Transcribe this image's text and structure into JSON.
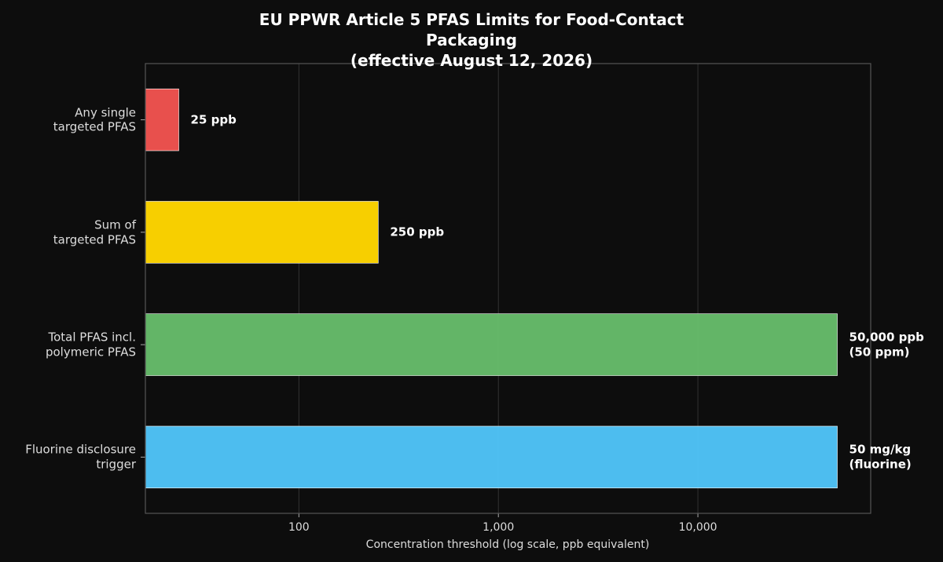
{
  "chart_data": {
    "type": "hbar",
    "title": "EU PPWR Article 5 PFAS Limits for Food-Contact Packaging\n(effective August 12, 2026)",
    "xlabel": "Concentration threshold (log scale, ppb equivalent)",
    "categories": [
      "Any single\ntargeted PFAS",
      "Sum of\ntargeted PFAS",
      "Total PFAS incl.\npolymeric PFAS",
      "Fluorine disclosure\ntrigger"
    ],
    "values": [
      25,
      250,
      50000,
      50000
    ],
    "value_labels": [
      "25 ppb",
      "250 ppb",
      "50,000 ppb\n(50 ppm)",
      "50 mg/kg\n(fluorine)"
    ],
    "colors": [
      "#ef5350",
      "#ffd600",
      "#66bb6a",
      "#4fc3f7"
    ],
    "xscale": "log",
    "xlim": [
      17,
      73500
    ],
    "xticks": [
      100,
      {
        "value": 1000,
        "label": "1,000"
      },
      {
        "value": 10000,
        "label": "10,000"
      }
    ],
    "grid": true
  }
}
